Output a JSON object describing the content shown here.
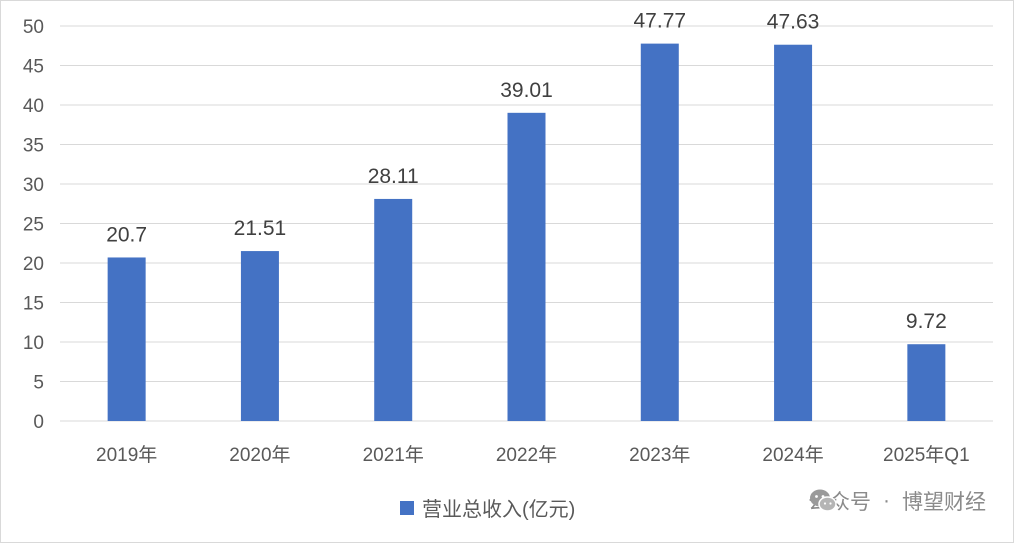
{
  "chart_data": {
    "type": "bar",
    "categories": [
      "2019年",
      "2020年",
      "2021年",
      "2022年",
      "2023年",
      "2024年",
      "2025年Q1"
    ],
    "series": [
      {
        "name": "营业总收入(亿元)",
        "values": [
          20.7,
          21.51,
          28.11,
          39.01,
          47.77,
          47.63,
          9.72
        ],
        "color": "#4472c4"
      }
    ],
    "value_labels": [
      "20.7",
      "21.51",
      "28.11",
      "39.01",
      "47.77",
      "47.63",
      "9.72"
    ],
    "ylim": [
      0,
      50
    ],
    "yticks": [
      0,
      5,
      10,
      15,
      20,
      25,
      30,
      35,
      40,
      45,
      50
    ],
    "grid": true,
    "legend_position": "bottom"
  },
  "watermark": {
    "account": "公众号",
    "separator": "·",
    "name": "博望财经",
    "icon": "wechat-icon"
  }
}
